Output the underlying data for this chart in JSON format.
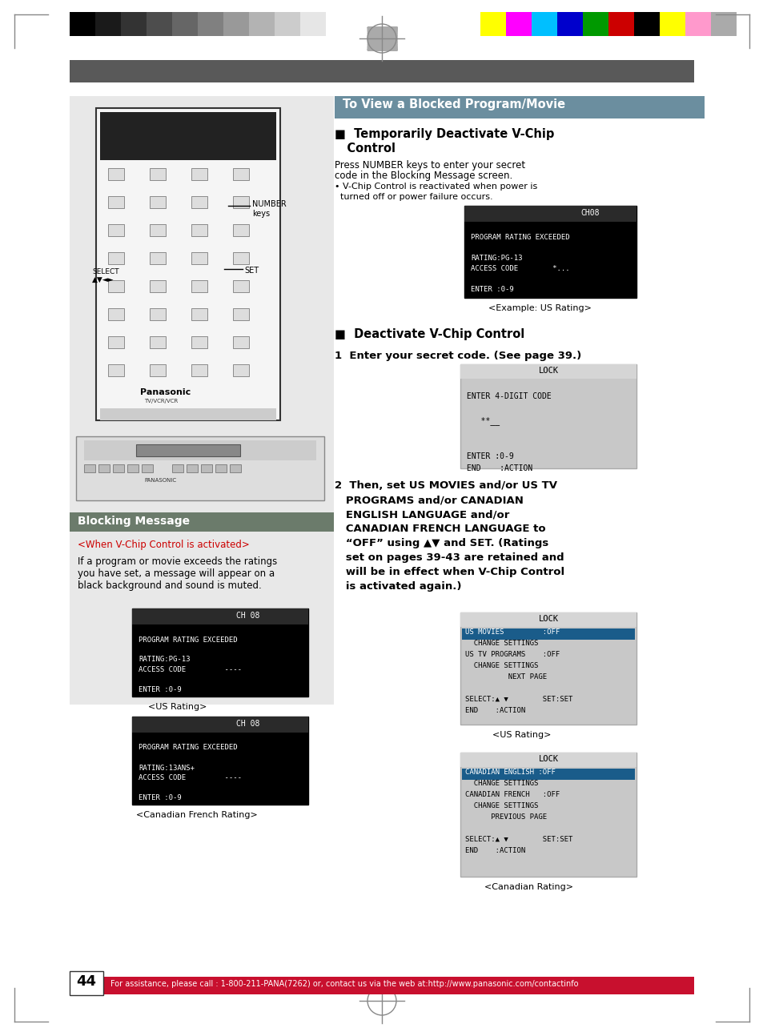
{
  "page_bg": "#ffffff",
  "header_bar_color": "#595959",
  "page_num": "44",
  "footer_text": "For assistance, please call : 1-800-211-PANA(7262) or, contact us via the web at:http://www.panasonic.com/contactinfo",
  "footer_bg": "#c8102e",
  "grayscale_colors": [
    "#000000",
    "#1a1a1a",
    "#333333",
    "#4d4d4d",
    "#666666",
    "#808080",
    "#999999",
    "#b3b3b3",
    "#cccccc",
    "#e6e6e6",
    "#ffffff"
  ],
  "color_bars": [
    "#ffff00",
    "#ff00ff",
    "#00bfff",
    "#0000cc",
    "#009900",
    "#cc0000",
    "#000000",
    "#ffff00",
    "#ff99cc",
    "#aaaaaa"
  ],
  "title_bg": "#6b8e9f",
  "title_text": "To View a Blocked Program/Movie",
  "blocking_msg_bg": "#6b7b6b",
  "blocking_msg_title": "Blocking Message",
  "section1_heading": "■  Temporarily Deactivate V-Chip\n   Control",
  "section1_body": "Press NUMBER keys to enter your secret\ncode in the Blocking Message screen.\n• V-Chip Control is reactivated when power is\n  turned off or power failure occurs.",
  "screen1_header": "CH08",
  "screen1_lines": [
    "",
    "PROGRAM RATING EXCEEDED",
    "",
    "RATING:PG-13",
    "ACCESS CODE        *...",
    "",
    "ENTER :0-9"
  ],
  "screen1_caption": "<Example: US Rating>",
  "section2_heading": "■  Deactivate V-Chip Control",
  "step1_heading": "1  Enter your secret code. (See page 39.)",
  "lock_screen1_lines": [
    "LOCK",
    "",
    "ENTER 4-DIGIT CODE",
    "",
    "   **__",
    "",
    "",
    "ENTER :0-9",
    "END    :ACTION"
  ],
  "left_screen_us_lines": [
    "CH 08",
    "",
    "PROGRAM RATING EXCEEDED",
    "",
    "RATING:PG-13",
    "ACCESS CODE         ----",
    "",
    "ENTER :0-9"
  ],
  "left_us_caption": "<US Rating>",
  "left_screen_can_lines": [
    "CH 08",
    "",
    "PROGRAM RATING EXCEEDED",
    "",
    "RATING:13ANS+",
    "ACCESS CODE         ----",
    "",
    "ENTER :0-9"
  ],
  "left_can_caption": "<Canadian French Rating>",
  "when_activated_heading": "<When V-Chip Control is activated>",
  "when_activated_body": "If a program or movie exceeds the ratings\nyou have set, a message will appear on a\nblack background and sound is muted.",
  "step2_heading": "2  Then, set US MOVIES and/or US TV\n   PROGRAMS and/or CANADIAN\n   ENGLISH LANGUAGE and/or\n   CANADIAN FRENCH LANGUAGE to\n   “OFF” using ▲▼ and SET. (Ratings\n   set on pages 39-43 are retained and\n   will be in effect when V-Chip Control\n   is activated again.)",
  "us_lock_lines": [
    "LOCK",
    "US MOVIES         :OFF",
    "  CHANGE SETTINGS",
    "US TV PROGRAMS    :OFF",
    "  CHANGE SETTINGS",
    "          NEXT PAGE",
    "",
    "SELECT:▲ ▼        SET:SET",
    "END    :ACTION"
  ],
  "us_lock_caption": "<US Rating>",
  "can_lock_lines": [
    "LOCK",
    "CANADIAN ENGLISH :OFF",
    "  CHANGE SETTINGS",
    "CANADIAN FRENCH   :OFF",
    "  CHANGE SETTINGS",
    "      PREVIOUS PAGE",
    "",
    "SELECT:▲ ▼        SET:SET",
    "END    :ACTION"
  ],
  "can_lock_caption": "<Canadian Rating>",
  "left_panel_bg": "#e8e8e8",
  "screen_bg": "#000000",
  "screen_text_color": "#ffffff",
  "screen_highlight_bg": "#333333",
  "lock_bg": "#d0d0d0",
  "lock_text": "#000000"
}
